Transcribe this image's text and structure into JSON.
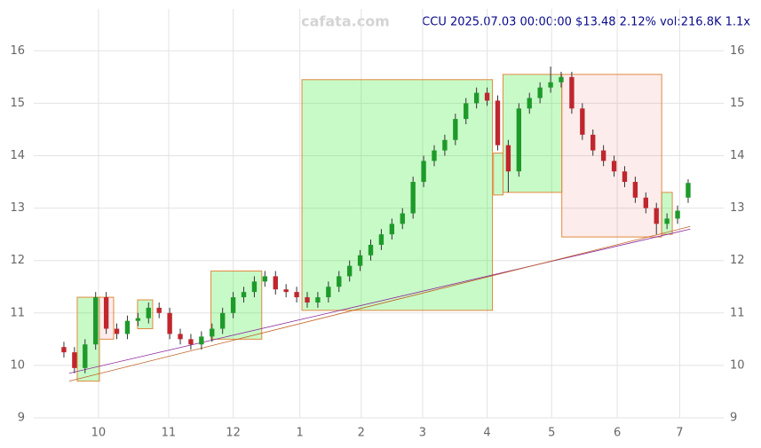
{
  "chart_data": {
    "type": "candlestick",
    "title": "CCU 2025.07.03 00:00:00 $13.48 2.12% vol:216.8K 1.1x",
    "watermark": "cafata.com",
    "x": [
      0,
      1,
      2,
      3,
      4,
      5,
      6,
      7,
      8,
      9,
      10,
      11,
      12,
      13,
      14,
      15,
      16,
      17,
      18,
      19,
      20,
      21,
      22,
      23,
      24,
      25,
      26,
      27,
      28,
      29,
      30,
      31,
      32,
      33,
      34,
      35,
      36,
      37,
      38,
      39,
      40,
      41,
      42,
      43,
      44,
      45,
      46,
      47,
      48,
      49,
      50,
      51,
      52,
      53,
      54,
      55,
      56,
      57,
      58,
      59
    ],
    "open": [
      10.35,
      10.25,
      9.95,
      10.4,
      11.3,
      10.7,
      10.6,
      10.85,
      10.9,
      11.1,
      11.0,
      10.6,
      10.5,
      10.4,
      10.55,
      10.7,
      11.0,
      11.3,
      11.4,
      11.6,
      11.7,
      11.45,
      11.4,
      11.3,
      11.2,
      11.3,
      11.5,
      11.7,
      11.9,
      12.1,
      12.3,
      12.5,
      12.7,
      12.9,
      13.5,
      13.9,
      14.1,
      14.3,
      14.7,
      15.0,
      15.2,
      15.05,
      14.2,
      13.7,
      14.9,
      15.1,
      15.3,
      15.4,
      15.5,
      14.9,
      14.4,
      14.1,
      13.9,
      13.7,
      13.5,
      13.2,
      13.0,
      12.7,
      12.8,
      13.2
    ],
    "high": [
      10.45,
      10.35,
      10.5,
      11.4,
      11.4,
      10.8,
      10.95,
      11.0,
      11.2,
      11.2,
      11.1,
      10.7,
      10.6,
      10.65,
      10.8,
      11.1,
      11.4,
      11.5,
      11.7,
      11.8,
      11.8,
      11.55,
      11.5,
      11.4,
      11.4,
      11.6,
      11.8,
      12.0,
      12.2,
      12.4,
      12.6,
      12.8,
      13.0,
      13.6,
      14.0,
      14.2,
      14.4,
      14.8,
      15.1,
      15.3,
      15.3,
      15.15,
      14.3,
      15.0,
      15.2,
      15.4,
      15.7,
      15.6,
      15.6,
      15.0,
      14.5,
      14.2,
      14.0,
      13.8,
      13.6,
      13.3,
      13.1,
      12.9,
      13.05,
      13.55
    ],
    "low": [
      10.15,
      9.85,
      9.85,
      10.3,
      10.6,
      10.5,
      10.5,
      10.75,
      10.8,
      10.9,
      10.5,
      10.4,
      10.3,
      10.3,
      10.45,
      10.6,
      10.9,
      11.2,
      11.3,
      11.5,
      11.35,
      11.3,
      11.2,
      11.1,
      11.1,
      11.2,
      11.4,
      11.6,
      11.8,
      12.0,
      12.2,
      12.4,
      12.6,
      12.8,
      13.4,
      13.8,
      14.0,
      14.2,
      14.6,
      14.9,
      14.95,
      14.1,
      13.3,
      13.6,
      14.8,
      15.0,
      15.2,
      15.3,
      14.8,
      14.3,
      14.0,
      13.8,
      13.6,
      13.4,
      13.1,
      12.9,
      12.5,
      12.6,
      12.7,
      13.1
    ],
    "close": [
      10.25,
      9.95,
      10.4,
      11.3,
      10.7,
      10.6,
      10.85,
      10.9,
      11.1,
      11.0,
      10.6,
      10.5,
      10.4,
      10.55,
      10.7,
      11.0,
      11.3,
      11.4,
      11.6,
      11.7,
      11.45,
      11.4,
      11.3,
      11.2,
      11.3,
      11.5,
      11.7,
      11.9,
      12.1,
      12.3,
      12.5,
      12.7,
      12.9,
      13.5,
      13.9,
      14.1,
      14.3,
      14.7,
      15.0,
      15.2,
      15.05,
      14.2,
      13.7,
      14.9,
      15.1,
      15.3,
      15.4,
      15.5,
      14.9,
      14.4,
      14.1,
      13.9,
      13.7,
      13.5,
      13.2,
      13.0,
      12.7,
      12.8,
      12.95,
      13.48
    ],
    "up_color": "#1e9a2a",
    "down_color": "#c0262d",
    "boxes": [
      {
        "x": [
          1.26,
          3.36
        ],
        "y": [
          9.7,
          11.3
        ],
        "color": "#33ee33"
      },
      {
        "x": [
          3.36,
          4.7
        ],
        "y": [
          10.5,
          11.3
        ],
        "color": "#f06060"
      },
      {
        "x": [
          6.96,
          8.39
        ],
        "y": [
          10.7,
          11.25
        ],
        "color": "#33ee33"
      },
      {
        "x": [
          13.9,
          18.7
        ],
        "y": [
          10.5,
          11.8
        ],
        "color": "#33ee33"
      },
      {
        "x": [
          22.5,
          40.5
        ],
        "y": [
          11.05,
          15.45
        ],
        "color": "#33ee33"
      },
      {
        "x": [
          40.6,
          41.5
        ],
        "y": [
          13.25,
          14.05
        ],
        "color": "#33ee33"
      },
      {
        "x": [
          41.5,
          47.06
        ],
        "y": [
          13.3,
          15.55
        ],
        "color": "#33ee33"
      },
      {
        "x": [
          47.06,
          56.5
        ],
        "y": [
          12.45,
          15.55
        ],
        "color": "#f06060"
      },
      {
        "x": [
          56.5,
          57.5
        ],
        "y": [
          12.5,
          13.3
        ],
        "color": "#33ee33"
      }
    ],
    "trend_lines": [
      {
        "x": [
          0.5,
          59.2
        ],
        "y": [
          9.85,
          12.6
        ],
        "color": "#8b2a9b"
      },
      {
        "x": [
          0.5,
          59.2
        ],
        "y": [
          9.7,
          12.65
        ],
        "color": "#c06020"
      }
    ],
    "xlim": [
      -2.85,
      62.36
    ],
    "ylim": [
      9,
      16.8
    ],
    "xticks": [
      {
        "value": 3.27,
        "label": "10"
      },
      {
        "value": 9.9,
        "label": "11"
      },
      {
        "value": 16.0,
        "label": "12"
      },
      {
        "value": 22.3,
        "label": "1"
      },
      {
        "value": 28.1,
        "label": "2"
      },
      {
        "value": 33.9,
        "label": "3"
      },
      {
        "value": 40.0,
        "label": "4"
      },
      {
        "value": 46.1,
        "label": "5"
      },
      {
        "value": 52.3,
        "label": "6"
      },
      {
        "value": 58.2,
        "label": "7"
      }
    ],
    "yticks": [
      9,
      10,
      11,
      12,
      13,
      14,
      15,
      16
    ],
    "grid": true
  }
}
